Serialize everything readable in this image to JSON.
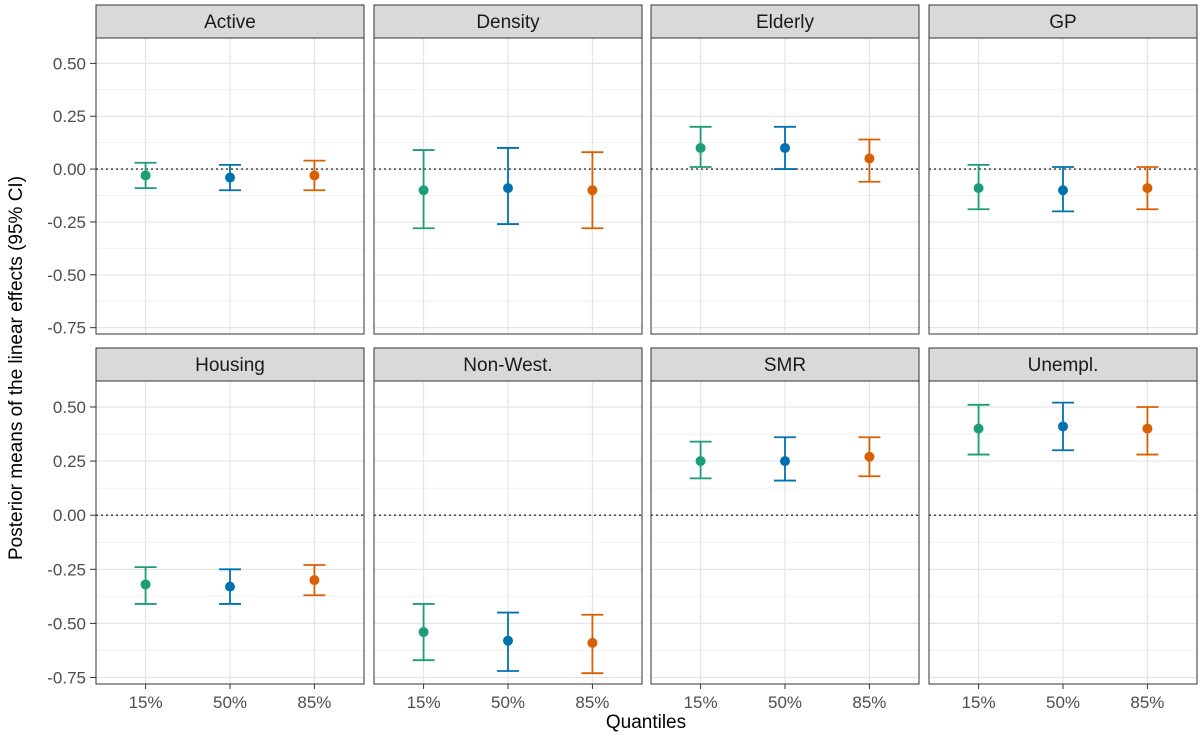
{
  "chart_data": {
    "type": "scatter",
    "ylabel": "Posterior means of the linear effects (95% CI)",
    "xlabel": "Quantiles",
    "categories": [
      "15%",
      "50%",
      "85%"
    ],
    "colors": [
      "#1b9e77",
      "#0072b2",
      "#d95f02"
    ],
    "ylim": [
      -0.78,
      0.62
    ],
    "y_ticks": [
      0.5,
      0.25,
      0.0,
      -0.25,
      -0.5,
      -0.75
    ],
    "y_tick_labels": [
      "0.50",
      "0.25",
      "0.00",
      "-0.25",
      "-0.50",
      "-0.75"
    ],
    "reference_line": 0,
    "grid": true,
    "facets": [
      {
        "label": "Active",
        "points": [
          {
            "mean": -0.03,
            "lower": -0.09,
            "upper": 0.03
          },
          {
            "mean": -0.04,
            "lower": -0.1,
            "upper": 0.02
          },
          {
            "mean": -0.03,
            "lower": -0.1,
            "upper": 0.04
          }
        ]
      },
      {
        "label": "Density",
        "points": [
          {
            "mean": -0.1,
            "lower": -0.28,
            "upper": 0.09
          },
          {
            "mean": -0.09,
            "lower": -0.26,
            "upper": 0.1
          },
          {
            "mean": -0.1,
            "lower": -0.28,
            "upper": 0.08
          }
        ]
      },
      {
        "label": "Elderly",
        "points": [
          {
            "mean": 0.1,
            "lower": 0.01,
            "upper": 0.2
          },
          {
            "mean": 0.1,
            "lower": 0.0,
            "upper": 0.2
          },
          {
            "mean": 0.05,
            "lower": -0.06,
            "upper": 0.14
          }
        ]
      },
      {
        "label": "GP",
        "points": [
          {
            "mean": -0.09,
            "lower": -0.19,
            "upper": 0.02
          },
          {
            "mean": -0.1,
            "lower": -0.2,
            "upper": 0.01
          },
          {
            "mean": -0.09,
            "lower": -0.19,
            "upper": 0.01
          }
        ]
      },
      {
        "label": "Housing",
        "points": [
          {
            "mean": -0.32,
            "lower": -0.41,
            "upper": -0.24
          },
          {
            "mean": -0.33,
            "lower": -0.41,
            "upper": -0.25
          },
          {
            "mean": -0.3,
            "lower": -0.37,
            "upper": -0.23
          }
        ]
      },
      {
        "label": "Non-West.",
        "points": [
          {
            "mean": -0.54,
            "lower": -0.67,
            "upper": -0.41
          },
          {
            "mean": -0.58,
            "lower": -0.72,
            "upper": -0.45
          },
          {
            "mean": -0.59,
            "lower": -0.73,
            "upper": -0.46
          }
        ]
      },
      {
        "label": "SMR",
        "points": [
          {
            "mean": 0.25,
            "lower": 0.17,
            "upper": 0.34
          },
          {
            "mean": 0.25,
            "lower": 0.16,
            "upper": 0.36
          },
          {
            "mean": 0.27,
            "lower": 0.18,
            "upper": 0.36
          }
        ]
      },
      {
        "label": "Unempl.",
        "points": [
          {
            "mean": 0.4,
            "lower": 0.28,
            "upper": 0.51
          },
          {
            "mean": 0.41,
            "lower": 0.3,
            "upper": 0.52
          },
          {
            "mean": 0.4,
            "lower": 0.28,
            "upper": 0.5
          }
        ]
      }
    ]
  }
}
